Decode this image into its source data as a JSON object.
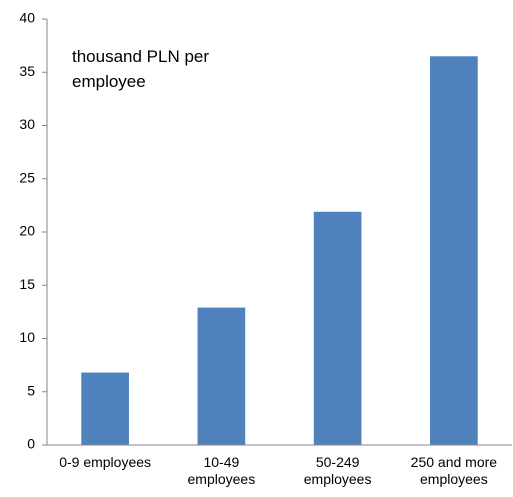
{
  "chart_data": {
    "type": "bar",
    "annotation": "thousand PLN per employee",
    "categories": [
      "0-9 employees",
      "10-49 employees",
      "50-249 employees",
      "250 and more employees"
    ],
    "values": [
      6.8,
      12.9,
      21.9,
      36.5
    ],
    "color": "#4f81bd",
    "ylim": [
      0,
      40
    ],
    "yticks": [
      0,
      5,
      10,
      15,
      20,
      25,
      30,
      35,
      40
    ],
    "grid": false
  }
}
